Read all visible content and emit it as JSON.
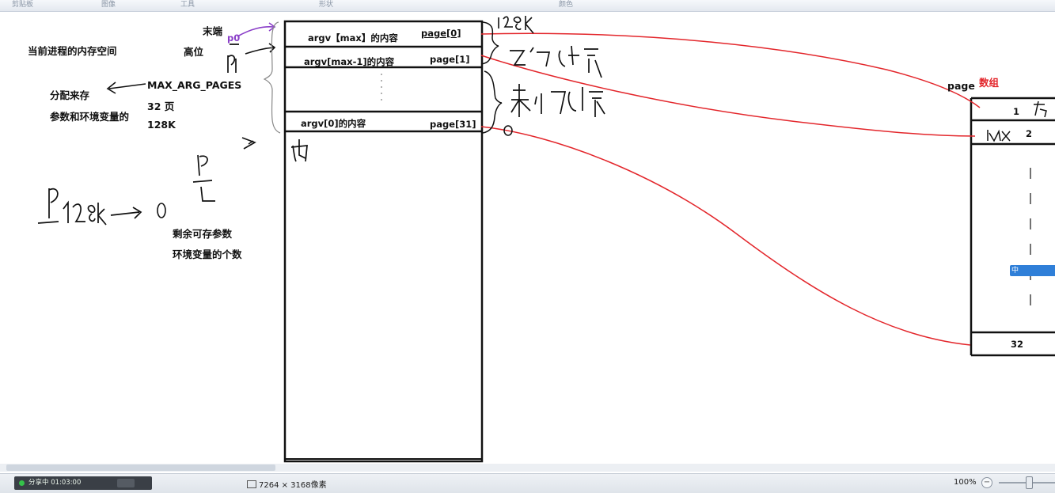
{
  "ribbon": {
    "groups": [
      "剪贴板",
      "图像",
      "工具",
      "形状",
      "颜色"
    ]
  },
  "left_notes": {
    "process_space": "当前进程的内存空间",
    "end_label": "末端",
    "high_label": "高位",
    "p0": "p0",
    "alloc": "分配来存",
    "args_env": "参数和环境变量的",
    "max_arg": "MAX_ARG_PAGES",
    "pages32": "32 页",
    "size128k": "128K",
    "remain1": "剩余可存参数",
    "remain2": "环境变量的个数"
  },
  "memory_box": {
    "rows": [
      {
        "content": "argv【max】的内容",
        "page": "page[0]"
      },
      {
        "content": "argv[max-1]的内容",
        "page": "page[1]"
      },
      {
        "content": "argv[0]的内容",
        "page": "page[31]"
      }
    ]
  },
  "page_array": {
    "label_page": "page",
    "label_array": "数组",
    "cells": [
      "1",
      "2",
      "32"
    ]
  },
  "ime": {
    "label": "中"
  },
  "statusbar": {
    "share_text": "分享中 01:03:00",
    "dimensions": "7264 × 3168像素",
    "zoom": "100%",
    "zoom_minus": "−"
  },
  "colors": {
    "red_line": "#e3262b",
    "accent_blue": "#2f7fd8",
    "purple": "#8a3ec8"
  }
}
